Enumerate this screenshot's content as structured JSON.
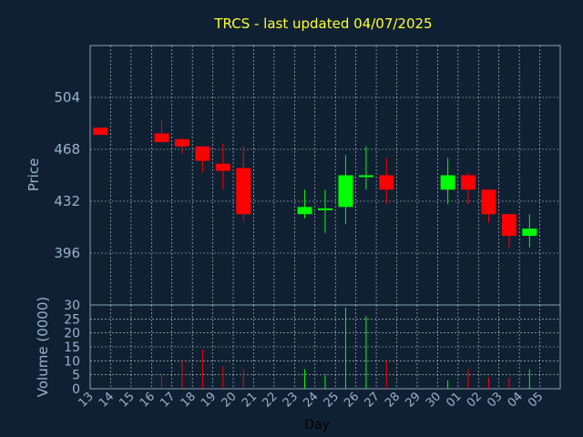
{
  "chart_data": {
    "type": "candlestick",
    "title": "TRCS - last updated 04/07/2025",
    "xlabel": "Day",
    "ylabel_price": "Price",
    "ylabel_volume": "Volume (0000)",
    "x_ticks": [
      "13",
      "14",
      "15",
      "16",
      "17",
      "18",
      "19",
      "20",
      "21",
      "22",
      "23",
      "24",
      "25",
      "26",
      "27",
      "28",
      "29",
      "30",
      "01",
      "02",
      "03",
      "04",
      "05"
    ],
    "price_ylim": [
      360,
      540
    ],
    "price_yticks": [
      396,
      432,
      468,
      504
    ],
    "volume_ylim": [
      0,
      30
    ],
    "volume_yticks": [
      0,
      5,
      10,
      15,
      20,
      25,
      30
    ],
    "grid": true,
    "colors": {
      "up": "#00ff00",
      "down": "#ff0000",
      "grid": "#ffffff",
      "background": "#0f2033"
    },
    "candles": [
      {
        "day": "13",
        "open": 483,
        "high": 483,
        "low": 478,
        "close": 478,
        "volume": 0
      },
      {
        "day": "16",
        "open": 479,
        "high": 488,
        "low": 473,
        "close": 473,
        "volume": 5
      },
      {
        "day": "17",
        "open": 475,
        "high": 476,
        "low": 465,
        "close": 470,
        "volume": 10
      },
      {
        "day": "18",
        "open": 470,
        "high": 470,
        "low": 452,
        "close": 460,
        "volume": 14
      },
      {
        "day": "19",
        "open": 458,
        "high": 472,
        "low": 440,
        "close": 453,
        "volume": 8
      },
      {
        "day": "20",
        "open": 455,
        "high": 470,
        "low": 418,
        "close": 423,
        "volume": 7
      },
      {
        "day": "23",
        "open": 423,
        "high": 440,
        "low": 420,
        "close": 428,
        "volume": 7
      },
      {
        "day": "24",
        "open": 426,
        "high": 440,
        "low": 410,
        "close": 427,
        "volume": 5
      },
      {
        "day": "25",
        "open": 428,
        "high": 464,
        "low": 416,
        "close": 450,
        "volume": 29
      },
      {
        "day": "26",
        "open": 449,
        "high": 470,
        "low": 440,
        "close": 450,
        "volume": 26
      },
      {
        "day": "27",
        "open": 450,
        "high": 462,
        "low": 430,
        "close": 440,
        "volume": 10
      },
      {
        "day": "30",
        "open": 440,
        "high": 462,
        "low": 430,
        "close": 450,
        "volume": 3
      },
      {
        "day": "01",
        "open": 450,
        "high": 452,
        "low": 430,
        "close": 440,
        "volume": 7
      },
      {
        "day": "02",
        "open": 440,
        "high": 440,
        "low": 417,
        "close": 423,
        "volume": 4
      },
      {
        "day": "03",
        "open": 423,
        "high": 423,
        "low": 400,
        "close": 408,
        "volume": 4
      },
      {
        "day": "04",
        "open": 408,
        "high": 423,
        "low": 400,
        "close": 413,
        "volume": 7
      }
    ]
  }
}
